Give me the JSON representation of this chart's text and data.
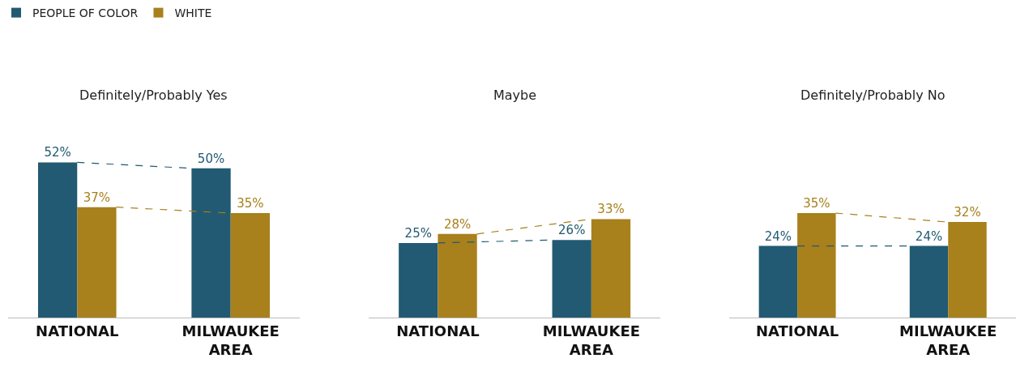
{
  "chart_data": [
    {
      "type": "bar",
      "title": "Definitely/Probably Yes",
      "categories": [
        "NATIONAL",
        "MILWAUKEE AREA"
      ],
      "legend": "top left",
      "grid": false,
      "series": [
        {
          "name": "PEOPLE OF COLOR",
          "color": "#215a72",
          "values": [
            52,
            50
          ],
          "value_labels": [
            "52%",
            "50%"
          ],
          "line_style": "dashed"
        },
        {
          "name": "WHITE",
          "color": "#a8801c",
          "values": [
            37,
            35
          ],
          "value_labels": [
            "37%",
            "35%"
          ],
          "line_style": "dashed"
        }
      ]
    },
    {
      "type": "bar",
      "title": "Maybe",
      "categories": [
        "NATIONAL",
        "MILWAUKEE AREA"
      ],
      "legend": false,
      "grid": false,
      "series": [
        {
          "color": "#215a72",
          "values": [
            25,
            26
          ],
          "value_labels": [
            "25%",
            "26%"
          ],
          "line_style": "dashed"
        },
        {
          "color": "#a8801c",
          "values": [
            28,
            33
          ],
          "value_labels": [
            "28%",
            "33%"
          ],
          "line_style": "dashed"
        }
      ]
    },
    {
      "type": "bar",
      "title": "Definitely/Probably No",
      "categories": [
        "NATIONAL",
        "MILWAUKEE AREA"
      ],
      "legend": false,
      "grid": false,
      "series": [
        {
          "color": "#215a72",
          "values": [
            24,
            24
          ],
          "value_labels": [
            "24%",
            "24%"
          ],
          "line_style": "dashed"
        },
        {
          "color": "#a8801c",
          "values": [
            35,
            32
          ],
          "value_labels": [
            "35%",
            "32%"
          ],
          "line_style": "dashed"
        }
      ]
    }
  ]
}
